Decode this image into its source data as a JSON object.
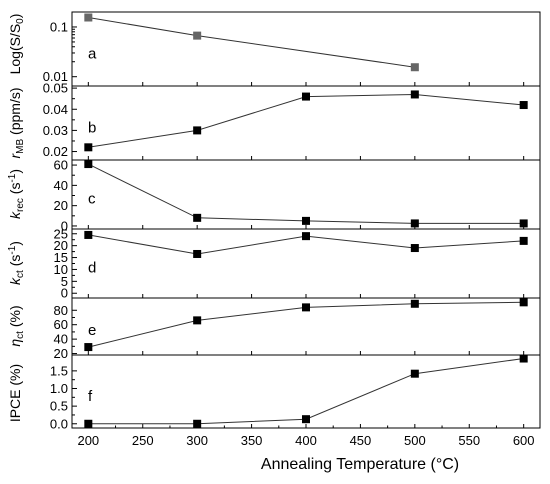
{
  "chart_data": [
    {
      "id": "a",
      "type": "line",
      "label": "a",
      "scale": "log",
      "ylabel": "Log(S/S0)",
      "ylim": [
        0.0065,
        0.2
      ],
      "yticks": [
        0.01,
        0.1
      ],
      "ytick_labels": [
        "0.01",
        "0.1"
      ],
      "marker_color": "#666666",
      "x": [
        200,
        300,
        500
      ],
      "values": [
        0.155,
        0.067,
        0.0155
      ]
    },
    {
      "id": "b",
      "type": "line",
      "label": "b",
      "scale": "linear",
      "ylabel": "rMB (ppm/s)",
      "ylim": [
        0.016,
        0.051
      ],
      "yticks": [
        0.02,
        0.03,
        0.04,
        0.05
      ],
      "ytick_labels": [
        "0.02",
        "0.03",
        "0.04",
        "0.05"
      ],
      "marker_color": "#000000",
      "x": [
        200,
        300,
        400,
        500,
        600
      ],
      "values": [
        0.022,
        0.03,
        0.046,
        0.047,
        0.042
      ]
    },
    {
      "id": "c",
      "type": "line",
      "label": "c",
      "scale": "linear",
      "ylabel": "krec (s-1)",
      "ylim": [
        -3,
        65
      ],
      "yticks": [
        0,
        20,
        40,
        60
      ],
      "ytick_labels": [
        "0",
        "20",
        "40",
        "60"
      ],
      "marker_color": "#000000",
      "x": [
        200,
        300,
        400,
        500,
        600
      ],
      "values": [
        61,
        8,
        5,
        2.5,
        2.5
      ]
    },
    {
      "id": "d",
      "type": "line",
      "label": "d",
      "scale": "linear",
      "ylabel": "kct (s-1)",
      "ylim": [
        -2,
        27
      ],
      "yticks": [
        0,
        5,
        10,
        15,
        20,
        25
      ],
      "ytick_labels": [
        "0",
        "5",
        "10",
        "15",
        "20",
        "25"
      ],
      "marker_color": "#000000",
      "x": [
        200,
        300,
        400,
        500,
        600
      ],
      "values": [
        24.5,
        16.5,
        24,
        19,
        22
      ]
    },
    {
      "id": "e",
      "type": "line",
      "label": "e",
      "scale": "linear",
      "ylabel": "ηct (%)",
      "ylim": [
        18,
        97
      ],
      "yticks": [
        20,
        40,
        60,
        80
      ],
      "ytick_labels": [
        "20",
        "40",
        "60",
        "80"
      ],
      "marker_color": "#000000",
      "x": [
        200,
        300,
        400,
        500,
        600
      ],
      "values": [
        29,
        66,
        84,
        89,
        91
      ]
    },
    {
      "id": "f",
      "type": "line",
      "label": "f",
      "scale": "linear",
      "ylabel": "IPCE (%)",
      "ylim": [
        -0.12,
        1.95
      ],
      "yticks": [
        0.0,
        0.5,
        1.0,
        1.5
      ],
      "ytick_labels": [
        "0.0",
        "0.5",
        "1.0",
        "1.5"
      ],
      "marker_color": "#000000",
      "x": [
        200,
        300,
        400,
        500,
        600
      ],
      "values": [
        0.0,
        0.0,
        0.13,
        1.42,
        1.85
      ]
    }
  ],
  "x_axis": {
    "xlabel": "Annealing Temperature (°C)",
    "xlim": [
      185,
      615
    ],
    "xticks": [
      200,
      250,
      300,
      350,
      400,
      450,
      500,
      550,
      600
    ],
    "xtick_labels": [
      "200",
      "250",
      "300",
      "350",
      "400",
      "450",
      "500",
      "550",
      "600"
    ]
  }
}
